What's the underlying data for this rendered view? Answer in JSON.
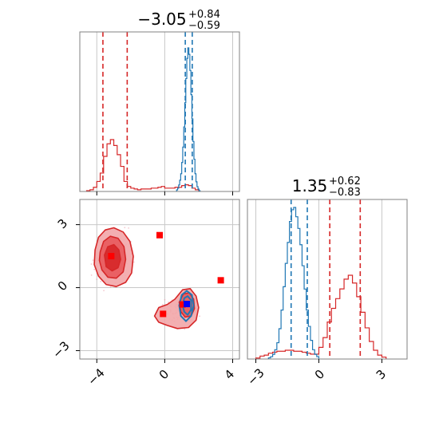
{
  "chart_data": {
    "type": "corner",
    "grid": true,
    "colors": {
      "red": "#d62728",
      "blue": "#1f77b4",
      "marker_red": "#ff0000",
      "marker_blue": "#0000ff",
      "fill_light": "#f2a6a8",
      "fill_mid": "#e8595c",
      "fill_dark": "#d62728"
    },
    "param1": {
      "title_value": "−3.05",
      "title_plus": "+0.84",
      "title_minus": "−0.59",
      "xlim": [
        -5,
        4.4
      ],
      "ticks": [
        -4,
        0,
        4
      ],
      "tick_labels": [
        "−4",
        "0",
        "4"
      ],
      "red_quantiles": [
        -3.64,
        -2.21
      ],
      "blue_quantiles": [
        1.21,
        1.62
      ],
      "hist_bins": [
        -4.6,
        -4.4,
        -4.2,
        -4.0,
        -3.8,
        -3.6,
        -3.4,
        -3.2,
        -3.0,
        -2.8,
        -2.6,
        -2.4,
        -2.2,
        -2.0,
        -1.8,
        -1.6,
        -1.4,
        -1.2,
        -1.0,
        -0.8,
        -0.6,
        -0.4,
        -0.2,
        0.0,
        0.2,
        0.4,
        0.6,
        0.8,
        1.0,
        1.2,
        1.4,
        1.6,
        1.8,
        2.0
      ],
      "hist_red": [
        1,
        2,
        5,
        12,
        22,
        42,
        57,
        62,
        55,
        44,
        30,
        12,
        6,
        4,
        3,
        2,
        3,
        3,
        3,
        4,
        4,
        5,
        6,
        4,
        4,
        4,
        5,
        5,
        7,
        8,
        7,
        4,
        2
      ],
      "blue_bins": [
        0.7,
        0.76,
        0.82,
        0.88,
        0.94,
        1.0,
        1.06,
        1.12,
        1.18,
        1.24,
        1.3,
        1.36,
        1.42,
        1.48,
        1.54,
        1.6,
        1.66,
        1.72,
        1.78,
        1.84,
        1.9,
        1.96,
        2.02,
        2.08
      ],
      "hist_blue": [
        2,
        4,
        8,
        14,
        22,
        36,
        55,
        80,
        110,
        140,
        165,
        178,
        170,
        150,
        120,
        90,
        62,
        40,
        22,
        12,
        6,
        3,
        1
      ]
    },
    "param2": {
      "title_value": "1.35",
      "title_plus": "+0.62",
      "title_minus": "−0.83",
      "lim": [
        -3.4,
        4.2
      ],
      "ticks": [
        -3,
        0,
        3
      ],
      "tick_labels": [
        "−3",
        "0",
        "3"
      ],
      "red_quantiles": [
        0.52,
        1.97
      ],
      "blue_quantiles": [
        -1.32,
        -0.55
      ],
      "hist_bins": [
        -3.0,
        -2.8,
        -2.6,
        -2.4,
        -2.2,
        -2.0,
        -1.8,
        -1.6,
        -1.4,
        -1.2,
        -1.0,
        -0.8,
        -0.6,
        -0.4,
        -0.2,
        0.0,
        0.2,
        0.4,
        0.6,
        0.8,
        1.0,
        1.2,
        1.4,
        1.6,
        1.8,
        2.0,
        2.2,
        2.4,
        2.6,
        2.8,
        3.0,
        3.2
      ],
      "hist_red": [
        1,
        3,
        4,
        6,
        7,
        8,
        8,
        9,
        9,
        8,
        8,
        7,
        6,
        5,
        5,
        12,
        22,
        38,
        52,
        62,
        72,
        82,
        86,
        78,
        64,
        48,
        32,
        18,
        9,
        4,
        2
      ],
      "blue_bins": [
        -2.4,
        -2.3,
        -2.2,
        -2.1,
        -2.0,
        -1.9,
        -1.8,
        -1.7,
        -1.6,
        -1.5,
        -1.4,
        -1.3,
        -1.2,
        -1.1,
        -1.0,
        -0.9,
        -0.8,
        -0.7,
        -0.6,
        -0.5,
        -0.4,
        -0.3,
        -0.2,
        -0.1,
        0.0
      ],
      "hist_blue": [
        1,
        2,
        4,
        8,
        14,
        26,
        42,
        62,
        82,
        100,
        118,
        128,
        130,
        122,
        112,
        98,
        80,
        60,
        42,
        28,
        16,
        8,
        4,
        2
      ]
    },
    "scatter": {
      "red_markers": [
        [
          -3.15,
          1.5
        ],
        [
          -0.3,
          2.5
        ],
        [
          -0.1,
          -1.25
        ],
        [
          3.3,
          0.35
        ],
        [
          1.05,
          -0.8
        ]
      ],
      "blue_markers": [
        [
          1.3,
          -0.78
        ]
      ],
      "red_contours": [
        [
          [
            -4.1,
            1.8
          ],
          [
            -3.9,
            2.4
          ],
          [
            -3.5,
            2.75
          ],
          [
            -3.0,
            2.85
          ],
          [
            -2.45,
            2.65
          ],
          [
            -2.05,
            2.2
          ],
          [
            -1.85,
            1.5
          ],
          [
            -1.95,
            0.7
          ],
          [
            -2.3,
            0.25
          ],
          [
            -2.85,
            0.05
          ],
          [
            -3.45,
            0.15
          ],
          [
            -3.9,
            0.55
          ],
          [
            -4.15,
            1.1
          ]
        ],
        [
          [
            -3.8,
            1.7
          ],
          [
            -3.6,
            2.2
          ],
          [
            -3.2,
            2.45
          ],
          [
            -2.75,
            2.35
          ],
          [
            -2.4,
            1.95
          ],
          [
            -2.3,
            1.35
          ],
          [
            -2.45,
            0.75
          ],
          [
            -2.85,
            0.45
          ],
          [
            -3.35,
            0.5
          ],
          [
            -3.7,
            0.85
          ],
          [
            -3.85,
            1.3
          ]
        ],
        [
          [
            -3.55,
            1.55
          ],
          [
            -3.35,
            1.95
          ],
          [
            -3.0,
            2.05
          ],
          [
            -2.7,
            1.8
          ],
          [
            -2.6,
            1.35
          ],
          [
            -2.75,
            0.95
          ],
          [
            -3.1,
            0.8
          ],
          [
            -3.45,
            1.0
          ]
        ],
        [
          [
            -0.6,
            -1.35
          ],
          [
            -0.35,
            -0.95
          ],
          [
            0.15,
            -0.8
          ],
          [
            0.6,
            -0.55
          ],
          [
            1.05,
            -0.1
          ],
          [
            1.5,
            -0.05
          ],
          [
            1.85,
            -0.4
          ],
          [
            2.0,
            -0.95
          ],
          [
            1.85,
            -1.55
          ],
          [
            1.4,
            -1.9
          ],
          [
            0.75,
            -1.95
          ],
          [
            0.15,
            -1.8
          ],
          [
            -0.35,
            -1.65
          ]
        ],
        [
          [
            0.85,
            -0.7
          ],
          [
            1.1,
            -0.3
          ],
          [
            1.45,
            -0.25
          ],
          [
            1.7,
            -0.55
          ],
          [
            1.75,
            -1.0
          ],
          [
            1.55,
            -1.35
          ],
          [
            1.2,
            -1.4
          ],
          [
            0.95,
            -1.15
          ]
        ]
      ],
      "blue_contours": [
        [
          [
            0.85,
            -0.85
          ],
          [
            1.0,
            -0.35
          ],
          [
            1.3,
            -0.15
          ],
          [
            1.6,
            -0.35
          ],
          [
            1.7,
            -0.85
          ],
          [
            1.55,
            -1.35
          ],
          [
            1.25,
            -1.6
          ],
          [
            0.95,
            -1.35
          ]
        ],
        [
          [
            1.05,
            -0.85
          ],
          [
            1.15,
            -0.5
          ],
          [
            1.35,
            -0.4
          ],
          [
            1.55,
            -0.6
          ],
          [
            1.55,
            -1.05
          ],
          [
            1.35,
            -1.3
          ],
          [
            1.15,
            -1.15
          ]
        ]
      ]
    }
  }
}
